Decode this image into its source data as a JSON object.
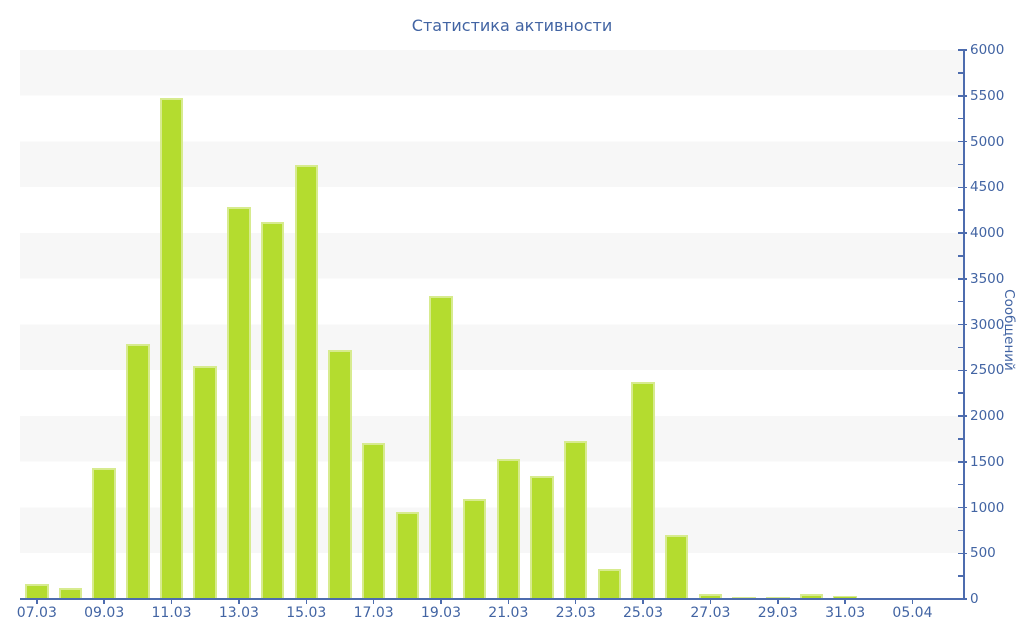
{
  "chart_data": {
    "type": "bar",
    "title": "Статистика активности",
    "ylabel": "Сообщений",
    "xlabel": "",
    "ylim": [
      0,
      6000
    ],
    "y_major_tick_step": 500,
    "y_minor_tick_step": 250,
    "y_axis_side": "right",
    "grid_bands": "horizontal alternating gray/white every 500",
    "legend": "none",
    "bar_count": 28,
    "x_tick_labels": [
      "07.03",
      "09.03",
      "11.03",
      "13.03",
      "15.03",
      "17.03",
      "19.03",
      "21.03",
      "23.03",
      "25.03",
      "27.03",
      "29.03",
      "31.03",
      "05.04"
    ],
    "x_tick_bar_indices": [
      0,
      2,
      4,
      6,
      8,
      10,
      12,
      14,
      16,
      18,
      20,
      22,
      24,
      26
    ],
    "y_tick_labels": [
      "0",
      "500",
      "1000",
      "1500",
      "2000",
      "2500",
      "3000",
      "3500",
      "4000",
      "4500",
      "5000",
      "5500",
      "6000"
    ],
    "values": [
      160,
      115,
      1430,
      2790,
      5480,
      2550,
      4280,
      4120,
      4740,
      2720,
      1700,
      950,
      3310,
      1090,
      1530,
      1340,
      1730,
      330,
      2370,
      700,
      50,
      20,
      20,
      50,
      30,
      15,
      10,
      15
    ],
    "colors": {
      "bar": "#b4dc2f",
      "bar_edge": "#d7eb8f",
      "axis": "#4d6cae",
      "label": "#4264a3",
      "band": "#f7f7f7",
      "background": "#ffffff"
    }
  }
}
